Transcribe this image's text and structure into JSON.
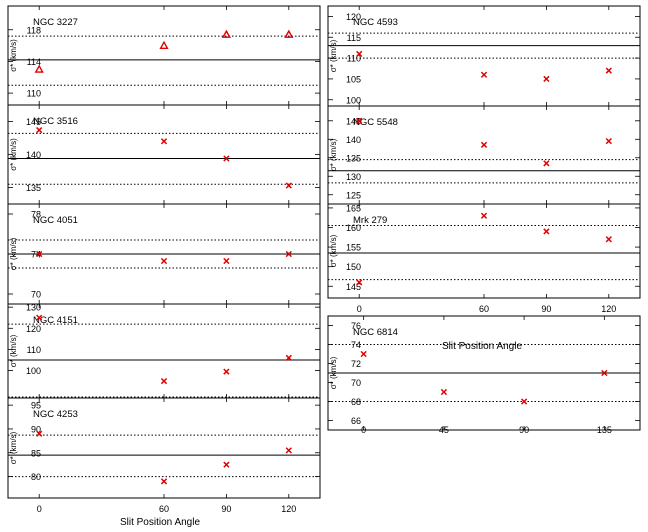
{
  "figure": {
    "x_axis_label": "Slit Position Angle",
    "y_axis_label": "σ* (km/s)"
  },
  "chart_data": [
    {
      "type": "scatter",
      "title": "NGC 3227",
      "marker": "triangle",
      "ylabel": "σ* (km/s)",
      "x": [
        0,
        60,
        90,
        120
      ],
      "y": [
        113,
        116,
        117.4,
        117.4
      ],
      "mean": 114.2,
      "band": [
        111,
        117.2
      ],
      "xlim": [
        -15,
        135
      ],
      "ylim": [
        108.5,
        121
      ],
      "yticks": [
        110,
        114,
        118
      ],
      "xtick_labels_shown": false
    },
    {
      "type": "scatter",
      "title": "NGC 3516",
      "marker": "x",
      "ylabel": "σ* (km/s)",
      "x": [
        0,
        60,
        90,
        120
      ],
      "y": [
        143.7,
        142,
        139.4,
        135.3
      ],
      "mean": 139.4,
      "band": [
        135.5,
        143.2
      ],
      "xlim": [
        -15,
        135
      ],
      "ylim": [
        132.5,
        147.5
      ],
      "yticks": [
        135,
        140,
        145
      ],
      "xtick_labels_shown": false
    },
    {
      "type": "scatter",
      "title": "NGC 4051",
      "marker": "x",
      "ylabel": "σ* (km/s)",
      "x": [
        0,
        60,
        90,
        120
      ],
      "y": [
        74,
        73.3,
        73.3,
        74
      ],
      "mean": 74,
      "band": [
        72.6,
        75.4
      ],
      "xlim": [
        -15,
        135
      ],
      "ylim": [
        69,
        79
      ],
      "yticks": [
        70,
        74,
        78
      ],
      "xtick_labels_shown": false
    },
    {
      "type": "scatter",
      "title": "NGC 4151",
      "marker": "x",
      "ylabel": "σ* (km/s)",
      "x": [
        0,
        60,
        90,
        120
      ],
      "y": [
        125,
        95,
        99.5,
        106
      ],
      "mean": 105,
      "band": [
        87.5,
        122
      ],
      "xlim": [
        -15,
        135
      ],
      "ylim": [
        87,
        131.5
      ],
      "yticks": [
        100,
        110,
        120,
        130
      ],
      "xtick_labels_shown": false
    },
    {
      "type": "scatter",
      "title": "NGC 4253",
      "marker": "x",
      "ylabel": "σ* (km/s)",
      "x": [
        0,
        60,
        90,
        120
      ],
      "y": [
        89,
        79,
        82.5,
        85.5
      ],
      "mean": 84.5,
      "band": [
        80,
        88.7
      ],
      "xlim": [
        -15,
        135
      ],
      "ylim": [
        75.5,
        96.5
      ],
      "yticks": [
        80,
        85,
        90,
        95
      ],
      "xticks": [
        0,
        60,
        90,
        120
      ],
      "xtick_labels": [
        "0",
        "60",
        "90",
        "120"
      ],
      "xtick_labels_shown": true
    },
    {
      "type": "scatter",
      "title": "NGC 4593",
      "marker": "x",
      "ylabel": "σ* (km/s)",
      "x": [
        0,
        60,
        90,
        120
      ],
      "y": [
        111,
        106,
        105,
        107
      ],
      "mean": 113,
      "band": [
        110,
        116
      ],
      "xlim": [
        -15,
        135
      ],
      "ylim": [
        98.5,
        122.5
      ],
      "yticks": [
        100,
        105,
        110,
        115,
        120
      ],
      "xtick_labels_shown": false
    },
    {
      "type": "scatter",
      "title": "NGC 5548",
      "marker": "x",
      "ylabel": "σ* (km/s)",
      "x": [
        0,
        60,
        90,
        120
      ],
      "y": [
        145,
        138.5,
        133.5,
        139.5
      ],
      "mean": 131.5,
      "band": [
        128.2,
        134.5
      ],
      "xlim": [
        -15,
        135
      ],
      "ylim": [
        122.5,
        149
      ],
      "yticks": [
        125,
        130,
        135,
        140,
        145
      ],
      "xtick_labels_shown": false
    },
    {
      "type": "scatter",
      "title": "Mrk 279",
      "marker": "x",
      "ylabel": "σ* (km/s)",
      "x": [
        0,
        60,
        90,
        120
      ],
      "y": [
        146,
        163,
        159,
        157
      ],
      "mean": 153.5,
      "band": [
        146.7,
        160.5
      ],
      "xlim": [
        -15,
        135
      ],
      "ylim": [
        142,
        166
      ],
      "yticks": [
        145,
        150,
        155,
        160,
        165
      ],
      "xticks": [
        0,
        60,
        90,
        120
      ],
      "xtick_labels": [
        "0",
        "60",
        "90",
        "120"
      ],
      "xtick_labels_shown": true
    },
    {
      "type": "scatter",
      "title": "NGC 6814",
      "marker": "x",
      "ylabel": "σ* (km/s)",
      "x": [
        0,
        45,
        90,
        135
      ],
      "y": [
        73,
        69,
        68,
        71
      ],
      "mean": 71,
      "band": [
        68,
        74
      ],
      "xlim": [
        -20,
        155
      ],
      "ylim": [
        65,
        77
      ],
      "yticks": [
        66,
        68,
        70,
        72,
        74,
        76
      ],
      "xticks": [
        0,
        45,
        90,
        135
      ],
      "xtick_labels": [
        "0",
        "45",
        "90",
        "135"
      ],
      "xtick_labels_shown": true
    }
  ],
  "colors": {
    "marker": "#e00000",
    "line": "#000000",
    "frame": "#000000"
  }
}
